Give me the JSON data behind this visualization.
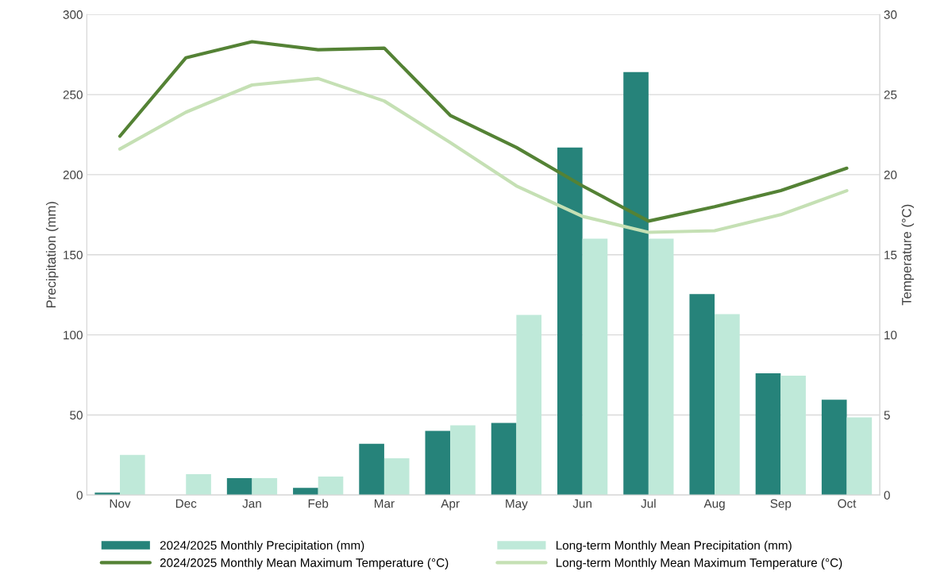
{
  "chart_data": {
    "type": "bar",
    "categories": [
      "Nov",
      "Dec",
      "Jan",
      "Feb",
      "Mar",
      "Apr",
      "May",
      "Jun",
      "Jul",
      "Aug",
      "Sep",
      "Oct"
    ],
    "ylabel": "Precipitation (mm)",
    "y2label": "Temperature (°C)",
    "ylim": [
      0,
      300
    ],
    "yticks": [
      0,
      50,
      100,
      150,
      200,
      250,
      300
    ],
    "y2lim": [
      0,
      30
    ],
    "y2ticks": [
      0,
      5,
      10,
      15,
      20,
      25,
      30
    ],
    "grid": "y",
    "legend": "bottom",
    "series": [
      {
        "name": "2024/2025 Monthly Precipitation (mm)",
        "color": "#26837a",
        "values": [
          1.5,
          0,
          10.5,
          4.5,
          32,
          40,
          45,
          217,
          264,
          125.5,
          76,
          59.5
        ]
      },
      {
        "name": "Long-term Monthly Mean Precipitation (mm)",
        "color": "#bfe9d9",
        "values": [
          25,
          13,
          10.5,
          11.5,
          23,
          43.5,
          112.5,
          160,
          160,
          113,
          74.5,
          48.5
        ]
      },
      {
        "name": "2024/2025 Monthly Mean Maximum Temperature (°C)",
        "type": "line",
        "axis": "y2",
        "color": "#548235",
        "values": [
          22.4,
          27.3,
          28.3,
          27.8,
          27.9,
          23.7,
          21.7,
          19.3,
          17.1,
          18.0,
          19.0,
          20.4
        ]
      },
      {
        "name": "Long-term Monthly Mean Maximum Temperature (°C)",
        "type": "line",
        "axis": "y2",
        "color": "#c5e0b4",
        "values": [
          21.6,
          23.9,
          25.6,
          26.0,
          24.6,
          22.0,
          19.3,
          17.4,
          16.4,
          16.5,
          17.5,
          19.0
        ]
      }
    ]
  }
}
